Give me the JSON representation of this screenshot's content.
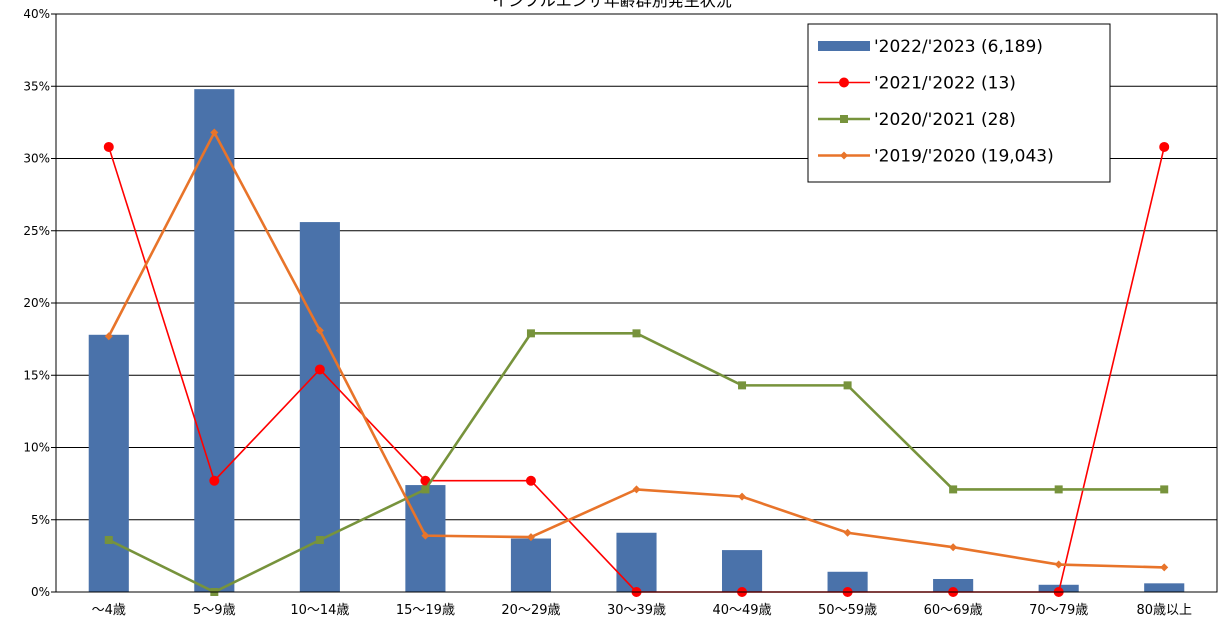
{
  "chart_data": {
    "type": "bar",
    "title": "インフルエンザ年齢群別発生状況",
    "categories": [
      "～4歳",
      "5～9歳",
      "10～14歳",
      "15～19歳",
      "20～29歳",
      "30～39歳",
      "40～49歳",
      "50～59歳",
      "60～69歳",
      "70～79歳",
      "80歳以上"
    ],
    "ylim": [
      0,
      40
    ],
    "yticks": [
      0,
      5,
      10,
      15,
      20,
      25,
      30,
      35,
      40
    ],
    "ytick_suffix": "%",
    "grid": true,
    "legend_position": "top-right",
    "series": [
      {
        "name": "'2022/'2023 (6,189)",
        "kind": "bar",
        "color": "#4a72aa",
        "values": [
          17.8,
          34.8,
          25.6,
          7.4,
          3.7,
          4.1,
          2.9,
          1.4,
          0.9,
          0.5,
          0.6
        ]
      },
      {
        "name": "'2021/'2022 (13)",
        "kind": "line",
        "marker": "circle",
        "color": "#ff0000",
        "values": [
          30.8,
          7.7,
          15.4,
          7.7,
          7.7,
          0,
          0,
          0,
          0,
          0,
          30.8
        ]
      },
      {
        "name": "'2020/'2021 (28)",
        "kind": "line",
        "marker": "square",
        "color": "#77933c",
        "values": [
          3.6,
          0,
          3.6,
          7.1,
          17.9,
          17.9,
          14.3,
          14.3,
          7.1,
          7.1,
          7.1
        ]
      },
      {
        "name": "'2019/'2020 (19,043)",
        "kind": "line",
        "marker": "diamond",
        "color": "#e8742a",
        "values": [
          17.7,
          31.8,
          18.1,
          3.9,
          3.8,
          7.1,
          6.6,
          4.1,
          3.1,
          1.9,
          1.7
        ]
      }
    ]
  }
}
